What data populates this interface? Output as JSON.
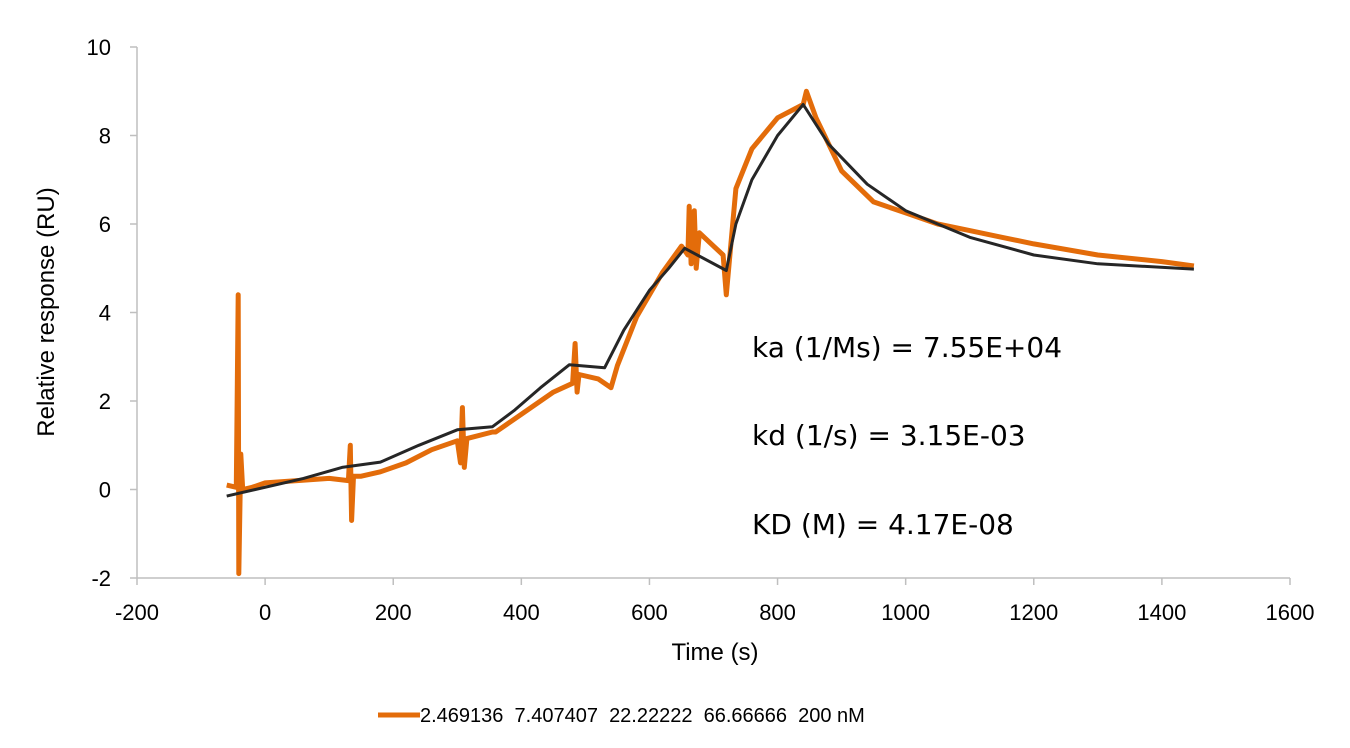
{
  "chart_data": {
    "type": "line",
    "xlabel": "Time (s)",
    "ylabel": "Relative response (RU)",
    "xlim": [
      -200,
      1600
    ],
    "xticks": [
      -200,
      0,
      200,
      400,
      600,
      800,
      1000,
      1200,
      1400,
      1600
    ],
    "ylim": [
      -2,
      10
    ],
    "yticks": [
      -2,
      0,
      2,
      4,
      6,
      8,
      10
    ],
    "grid": false,
    "legend": "bottom",
    "annotations": [
      "ka (1/Ms) = 7.55E+04",
      "kd (1/s) = 3.15E-03",
      "KD (M) = 4.17E-08"
    ],
    "series": [
      {
        "name": "2.469136  7.407407  22.22222  66.66666  200 nM",
        "color": "#e36c0a",
        "x": [
          -60,
          -45,
          -42,
          -41,
          -38,
          -35,
          -20,
          0,
          50,
          100,
          130,
          133,
          135,
          138,
          150,
          180,
          220,
          260,
          300,
          305,
          308,
          311,
          315,
          355,
          360,
          400,
          450,
          480,
          484,
          487,
          490,
          520,
          540,
          550,
          580,
          620,
          650,
          660,
          662,
          665,
          670,
          673,
          678,
          700,
          715,
          720,
          725,
          735,
          760,
          800,
          840,
          845,
          860,
          900,
          950,
          1000,
          1050,
          1100,
          1150,
          1200,
          1300,
          1400,
          1450
        ],
        "values": [
          0.1,
          0.05,
          4.4,
          -1.9,
          0.8,
          0.0,
          0.05,
          0.15,
          0.2,
          0.25,
          0.2,
          1.0,
          -0.7,
          0.3,
          0.3,
          0.4,
          0.6,
          0.9,
          1.1,
          0.6,
          1.85,
          0.5,
          1.15,
          1.3,
          1.3,
          1.7,
          2.2,
          2.4,
          3.3,
          2.2,
          2.6,
          2.5,
          2.3,
          2.8,
          3.9,
          4.9,
          5.5,
          5.3,
          6.4,
          5.1,
          6.3,
          5.0,
          5.8,
          5.5,
          5.3,
          4.4,
          5.2,
          6.8,
          7.7,
          8.4,
          8.7,
          9.0,
          8.4,
          7.2,
          6.5,
          6.25,
          6.0,
          5.85,
          5.7,
          5.55,
          5.3,
          5.15,
          5.05
        ]
      },
      {
        "color": "#262626",
        "x": [
          -60,
          60,
          120,
          180,
          240,
          300,
          355,
          390,
          430,
          475,
          530,
          560,
          600,
          630,
          655,
          720,
          735,
          760,
          800,
          840,
          880,
          940,
          1000,
          1100,
          1200,
          1300,
          1450
        ],
        "values": [
          -0.15,
          0.25,
          0.5,
          0.62,
          1.0,
          1.35,
          1.42,
          1.8,
          2.3,
          2.82,
          2.75,
          3.6,
          4.5,
          5.0,
          5.45,
          4.95,
          6.0,
          7.0,
          8.0,
          8.7,
          7.8,
          6.9,
          6.3,
          5.7,
          5.3,
          5.1,
          4.98
        ]
      }
    ]
  }
}
